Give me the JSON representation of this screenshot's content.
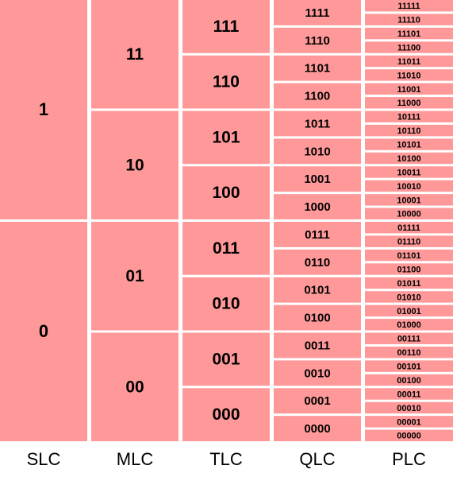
{
  "columns": [
    {
      "label": "SLC",
      "cells": [
        "1",
        "0"
      ]
    },
    {
      "label": "MLC",
      "cells": [
        "11",
        "10",
        "01",
        "00"
      ]
    },
    {
      "label": "TLC",
      "cells": [
        "111",
        "110",
        "101",
        "100",
        "011",
        "010",
        "001",
        "000"
      ]
    },
    {
      "label": "QLC",
      "cells": [
        "1111",
        "1110",
        "1101",
        "1100",
        "1011",
        "1010",
        "1001",
        "1000",
        "0111",
        "0110",
        "0101",
        "0100",
        "0011",
        "0010",
        "0001",
        "0000"
      ]
    },
    {
      "label": "PLC",
      "cells": [
        "11111",
        "11110",
        "11101",
        "11100",
        "11011",
        "11010",
        "11001",
        "11000",
        "10111",
        "10110",
        "10101",
        "10100",
        "10011",
        "10010",
        "10001",
        "10000",
        "01111",
        "01110",
        "01101",
        "01100",
        "01011",
        "01010",
        "01001",
        "01000",
        "00111",
        "00110",
        "00101",
        "00100",
        "00011",
        "00010",
        "00001",
        "00000"
      ]
    }
  ]
}
